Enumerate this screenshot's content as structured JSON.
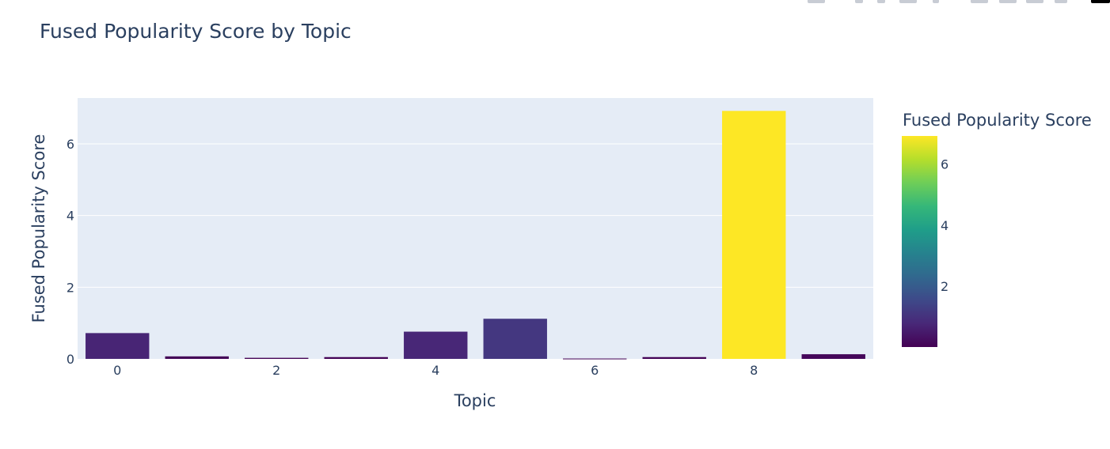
{
  "chart_data": {
    "type": "bar",
    "title": "Fused Popularity Score by Topic",
    "xlabel": "Topic",
    "ylabel": "Fused Popularity Score",
    "categories": [
      0,
      1,
      2,
      3,
      4,
      5,
      6,
      7,
      8,
      9
    ],
    "values": [
      0.72,
      0.07,
      0.03,
      0.05,
      0.76,
      1.12,
      0.01,
      0.05,
      6.92,
      0.13
    ],
    "xticks": [
      "0",
      "2",
      "4",
      "6",
      "8"
    ],
    "yticks": [
      "0",
      "2",
      "4",
      "6"
    ],
    "ylim": [
      0,
      7.28
    ],
    "grid": true,
    "colorscale": "Viridis",
    "colorbar": {
      "title": "Fused Popularity Score",
      "ticks": [
        "2",
        "4",
        "6"
      ],
      "range": [
        0.01,
        6.92
      ]
    },
    "colors": {
      "plot_bg": "#e5ecf6",
      "text": "#2a3f5f",
      "grid": "#ffffff"
    }
  }
}
